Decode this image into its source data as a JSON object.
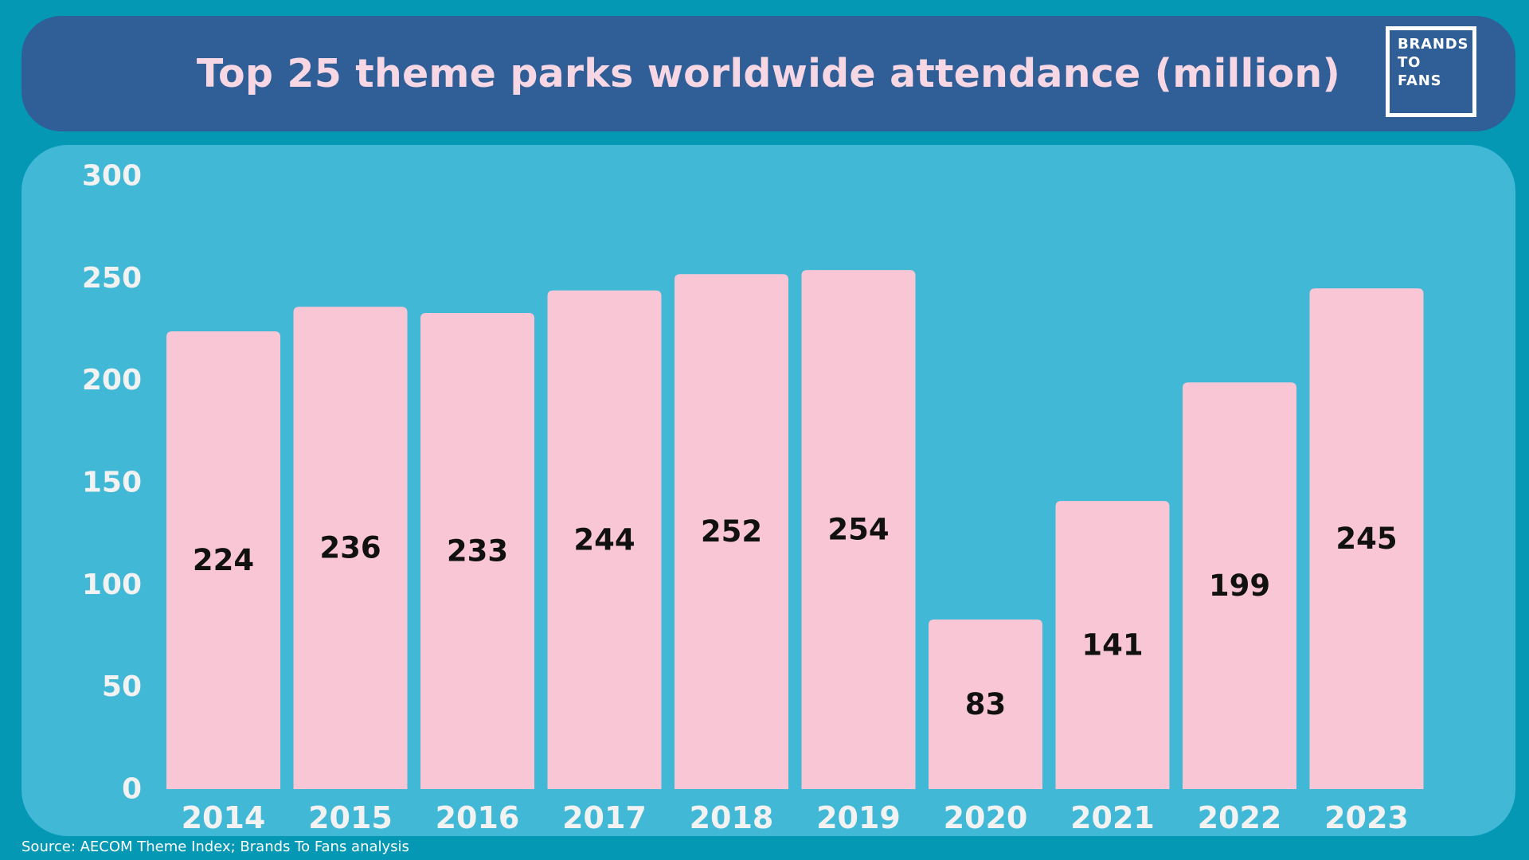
{
  "header": {
    "title": "Top 25 theme parks worldwide attendance (million)",
    "logo_lines": [
      "BRANDS",
      "TO",
      "FANS"
    ]
  },
  "footer": {
    "source": "Source: AECOM Theme Index; Brands To Fans analysis"
  },
  "colors": {
    "page_background": "#0498b5",
    "header_background": "#2f5f96",
    "plot_background": "#41b8d6",
    "bar": "#f8c6d5",
    "title_text": "#f7d7e4",
    "axis_text": "#f2f2f2",
    "value_label": "#111111"
  },
  "chart_data": {
    "type": "bar",
    "title": "Top 25 theme parks worldwide attendance (million)",
    "xlabel": "",
    "ylabel": "",
    "categories": [
      "2014",
      "2015",
      "2016",
      "2017",
      "2018",
      "2019",
      "2020",
      "2021",
      "2022",
      "2023"
    ],
    "values": [
      224,
      236,
      233,
      244,
      252,
      254,
      83,
      141,
      199,
      245
    ],
    "value_labels": [
      "224",
      "236",
      "233",
      "244",
      "252",
      "254",
      "83",
      "141",
      "199",
      "245"
    ],
    "ylim": [
      0,
      300
    ],
    "yticks": [
      0,
      50,
      100,
      150,
      200,
      250,
      300
    ],
    "ytick_labels": [
      "0",
      "50",
      "100",
      "150",
      "200",
      "250",
      "300"
    ],
    "grid": false,
    "legend": "none"
  }
}
